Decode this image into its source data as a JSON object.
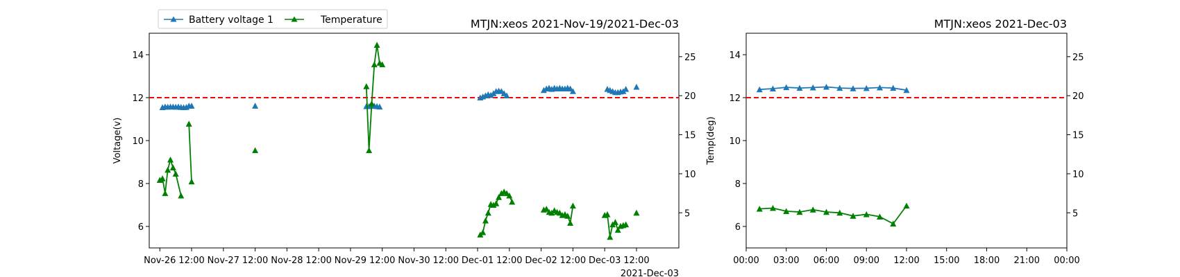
{
  "colors": {
    "voltage": "#1f77b4",
    "temperature": "#008000",
    "threshold": "#ff0000"
  },
  "legend": {
    "placement": "top-left",
    "entries": [
      "Battery voltage 1",
      "Temperature"
    ]
  },
  "chart_data": [
    {
      "type": "line",
      "title": "MTJN:xeos 2021-Nov-19/2021-Dec-03",
      "ylabel": "Voltage(v)",
      "y2label": "Temp(deg)",
      "x_tick_labels": [
        "Nov-26",
        "12:00",
        "Nov-27",
        "12:00",
        "Nov-28",
        "12:00",
        "Nov-29",
        "12:00",
        "Nov-30",
        "12:00",
        "Dec-01",
        "12:00",
        "Dec-02",
        "12:00",
        "Dec-03",
        "12:00"
      ],
      "x_offset_label": "2021-Dec-03",
      "y_ticks": [
        6,
        8,
        10,
        12,
        14
      ],
      "y2_ticks": [
        5,
        10,
        15,
        20,
        25
      ],
      "ylim": [
        5,
        15
      ],
      "y2lim": [
        0.5,
        28
      ],
      "xlim": [
        "2021-Nov-25 20:00",
        "2021-Dec-04 04:00"
      ],
      "threshold": {
        "y": 12,
        "style": "dashed"
      },
      "series": [
        {
          "name": "Battery voltage 1",
          "axis": "left",
          "segments": [
            [
              [
                "2021-Nov-26 01:00",
                11.55
              ],
              [
                "2021-Nov-26 02:00",
                11.58
              ],
              [
                "2021-Nov-26 03:00",
                11.57
              ],
              [
                "2021-Nov-26 04:00",
                11.58
              ],
              [
                "2021-Nov-26 05:00",
                11.58
              ],
              [
                "2021-Nov-26 06:00",
                11.57
              ],
              [
                "2021-Nov-26 07:00",
                11.58
              ],
              [
                "2021-Nov-26 08:00",
                11.56
              ],
              [
                "2021-Nov-26 09:00",
                11.55
              ],
              [
                "2021-Nov-26 10:00",
                11.56
              ]
            ],
            [
              [
                "2021-Nov-26 11:00",
                11.62
              ],
              [
                "2021-Nov-26 12:00",
                11.62
              ]
            ],
            [
              [
                "2021-Nov-27 12:00",
                11.62
              ]
            ],
            [
              [
                "2021-Nov-29 06:00",
                11.6
              ],
              [
                "2021-Nov-29 07:00",
                11.6
              ],
              [
                "2021-Nov-29 08:00",
                11.62
              ],
              [
                "2021-Nov-29 09:00",
                11.62
              ],
              [
                "2021-Nov-29 10:00",
                11.6
              ],
              [
                "2021-Nov-29 11:00",
                11.58
              ]
            ],
            [
              [
                "2021-Dec-01 01:00",
                12.0
              ],
              [
                "2021-Dec-01 02:00",
                12.05
              ],
              [
                "2021-Dec-01 03:00",
                12.1
              ],
              [
                "2021-Dec-01 04:00",
                12.15
              ],
              [
                "2021-Dec-01 05:00",
                12.12
              ],
              [
                "2021-Dec-01 06:00",
                12.2
              ],
              [
                "2021-Dec-01 07:00",
                12.3
              ],
              [
                "2021-Dec-01 08:00",
                12.32
              ],
              [
                "2021-Dec-01 09:00",
                12.3
              ],
              [
                "2021-Dec-01 10:00",
                12.2
              ],
              [
                "2021-Dec-01 11:00",
                12.1
              ]
            ],
            [
              [
                "2021-Dec-02 01:00",
                12.35
              ],
              [
                "2021-Dec-02 02:00",
                12.42
              ],
              [
                "2021-Dec-02 03:00",
                12.45
              ],
              [
                "2021-Dec-02 04:00",
                12.4
              ],
              [
                "2021-Dec-02 05:00",
                12.45
              ],
              [
                "2021-Dec-02 06:00",
                12.42
              ],
              [
                "2021-Dec-02 07:00",
                12.45
              ],
              [
                "2021-Dec-02 08:00",
                12.42
              ],
              [
                "2021-Dec-02 09:00",
                12.42
              ],
              [
                "2021-Dec-02 10:00",
                12.45
              ],
              [
                "2021-Dec-02 11:00",
                12.42
              ],
              [
                "2021-Dec-02 12:00",
                12.3
              ]
            ],
            [
              [
                "2021-Dec-03 01:00",
                12.4
              ],
              [
                "2021-Dec-03 02:00",
                12.35
              ],
              [
                "2021-Dec-03 03:00",
                12.3
              ],
              [
                "2021-Dec-03 04:00",
                12.25
              ],
              [
                "2021-Dec-03 05:00",
                12.25
              ],
              [
                "2021-Dec-03 06:00",
                12.28
              ],
              [
                "2021-Dec-03 07:00",
                12.3
              ],
              [
                "2021-Dec-03 08:00",
                12.4
              ]
            ],
            [
              [
                "2021-Dec-03 12:00",
                12.5
              ]
            ]
          ]
        },
        {
          "name": "Temperature",
          "axis": "right",
          "segments": [
            [
              [
                "2021-Nov-26 00:00",
                9.2
              ],
              [
                "2021-Nov-26 01:00",
                9.4
              ],
              [
                "2021-Nov-26 02:00",
                7.5
              ],
              [
                "2021-Nov-26 03:00",
                10.5
              ],
              [
                "2021-Nov-26 04:00",
                11.8
              ],
              [
                "2021-Nov-26 05:00",
                10.8
              ],
              [
                "2021-Nov-26 06:00",
                10.0
              ],
              [
                "2021-Nov-26 08:00",
                7.2
              ]
            ],
            [
              [
                "2021-Nov-26 11:00",
                16.4
              ],
              [
                "2021-Nov-26 12:00",
                9.0
              ]
            ],
            [
              [
                "2021-Nov-27 12:00",
                13.0
              ]
            ],
            [
              [
                "2021-Nov-29 06:00",
                21.2
              ],
              [
                "2021-Nov-29 07:00",
                13.0
              ],
              [
                "2021-Nov-29 08:00",
                19.0
              ],
              [
                "2021-Nov-29 09:00",
                24.0
              ],
              [
                "2021-Nov-29 10:00",
                26.5
              ],
              [
                "2021-Nov-29 11:00",
                24.2
              ],
              [
                "2021-Nov-29 12:00",
                24.0
              ]
            ],
            [
              [
                "2021-Dec-01 01:00",
                2.2
              ],
              [
                "2021-Dec-01 02:00",
                2.5
              ],
              [
                "2021-Dec-01 03:00",
                4.0
              ],
              [
                "2021-Dec-01 04:00",
                5.0
              ],
              [
                "2021-Dec-01 05:00",
                6.1
              ],
              [
                "2021-Dec-01 06:00",
                6.0
              ],
              [
                "2021-Dec-01 07:00",
                6.2
              ],
              [
                "2021-Dec-01 08:00",
                7.0
              ],
              [
                "2021-Dec-01 09:00",
                7.5
              ],
              [
                "2021-Dec-01 10:00",
                7.7
              ],
              [
                "2021-Dec-01 11:00",
                7.5
              ],
              [
                "2021-Dec-01 12:00",
                7.2
              ],
              [
                "2021-Dec-01 13:00",
                6.4
              ]
            ],
            [
              [
                "2021-Dec-02 01:00",
                5.4
              ],
              [
                "2021-Dec-02 02:00",
                5.5
              ],
              [
                "2021-Dec-02 03:00",
                5.1
              ],
              [
                "2021-Dec-02 04:00",
                5.0
              ],
              [
                "2021-Dec-02 05:00",
                5.3
              ],
              [
                "2021-Dec-02 06:00",
                5.1
              ],
              [
                "2021-Dec-02 07:00",
                5.0
              ],
              [
                "2021-Dec-02 08:00",
                4.7
              ],
              [
                "2021-Dec-02 09:00",
                4.8
              ],
              [
                "2021-Dec-02 10:00",
                4.6
              ],
              [
                "2021-Dec-02 11:00",
                3.7
              ],
              [
                "2021-Dec-02 12:00",
                5.9
              ]
            ],
            [
              [
                "2021-Dec-03 00:00",
                4.7
              ],
              [
                "2021-Dec-03 01:00",
                4.8
              ],
              [
                "2021-Dec-03 02:00",
                1.9
              ],
              [
                "2021-Dec-03 03:00",
                3.5
              ],
              [
                "2021-Dec-03 04:00",
                3.8
              ],
              [
                "2021-Dec-03 05:00",
                2.8
              ],
              [
                "2021-Dec-03 06:00",
                3.3
              ],
              [
                "2021-Dec-03 07:00",
                3.4
              ],
              [
                "2021-Dec-03 08:00",
                3.5
              ]
            ],
            [
              [
                "2021-Dec-03 12:00",
                5.0
              ]
            ]
          ]
        }
      ]
    },
    {
      "type": "line",
      "title": "MTJN:xeos 2021-Dec-03",
      "x_tick_labels": [
        "00:00",
        "03:00",
        "06:00",
        "09:00",
        "12:00",
        "15:00",
        "18:00",
        "21:00",
        "00:00"
      ],
      "y_ticks": [
        6,
        8,
        10,
        12,
        14
      ],
      "y2_ticks": [
        5,
        10,
        15,
        20,
        25
      ],
      "ylim": [
        5,
        15
      ],
      "y2lim": [
        0.5,
        28
      ],
      "xlim": [
        0,
        24
      ],
      "threshold": {
        "y": 12,
        "style": "dashed"
      },
      "series": [
        {
          "name": "Battery voltage 1",
          "axis": "left",
          "segments": [
            [
              [
                1,
                12.38
              ],
              [
                2,
                12.42
              ],
              [
                3,
                12.48
              ],
              [
                4,
                12.45
              ],
              [
                5,
                12.47
              ],
              [
                6,
                12.5
              ],
              [
                7,
                12.45
              ],
              [
                8,
                12.43
              ],
              [
                9,
                12.44
              ],
              [
                10,
                12.47
              ],
              [
                11,
                12.45
              ],
              [
                12,
                12.35
              ]
            ]
          ]
        },
        {
          "name": "Temperature",
          "axis": "right",
          "segments": [
            [
              [
                1,
                5.5
              ],
              [
                2,
                5.6
              ],
              [
                3,
                5.2
              ],
              [
                4,
                5.1
              ],
              [
                5,
                5.4
              ],
              [
                6,
                5.1
              ],
              [
                7,
                5.0
              ],
              [
                8,
                4.6
              ],
              [
                9,
                4.8
              ],
              [
                10,
                4.5
              ],
              [
                11,
                3.6
              ],
              [
                12,
                5.9
              ]
            ]
          ]
        }
      ]
    }
  ]
}
